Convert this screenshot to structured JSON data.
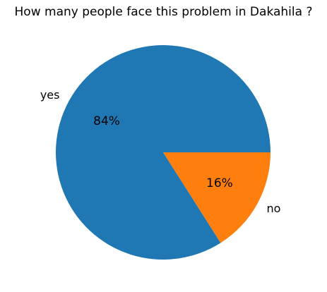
{
  "chart_data": {
    "type": "pie",
    "title": "How many people face this problem in Dakahila ?",
    "categories": [
      "yes",
      "no"
    ],
    "values": [
      84,
      16
    ],
    "percent_labels": [
      "84%",
      "16%"
    ],
    "colors": [
      "#1f77b4",
      "#ff7f0e"
    ],
    "start_angle": "3 o'clock",
    "direction": "counterclockwise"
  }
}
